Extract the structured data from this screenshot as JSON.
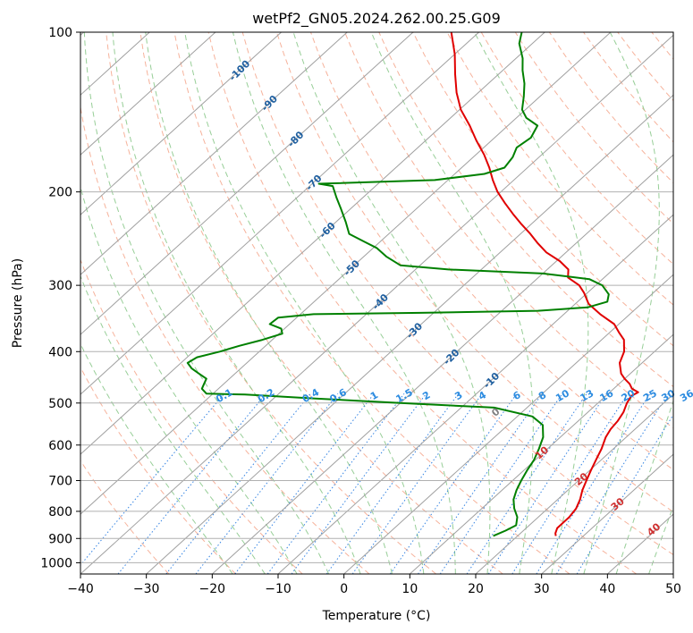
{
  "chart_data": {
    "type": "line",
    "title": "wetPf2_GN05.2024.262.00.25.G09",
    "xlabel": "Temperature (°C)",
    "ylabel": "Pressure (hPa)",
    "xlim": [
      -40,
      50
    ],
    "ylim": [
      1050,
      100
    ],
    "y_scale": "log",
    "x_ticks": [
      -40,
      -30,
      -20,
      -10,
      0,
      10,
      20,
      30,
      40,
      50
    ],
    "y_ticks": [
      100,
      200,
      300,
      400,
      500,
      600,
      700,
      800,
      900,
      1000
    ],
    "grid": true,
    "colors": {
      "temperature": "#e00000",
      "dewpoint": "#008000",
      "isotherm": "#9b9b9b",
      "dry_adiabat": "#f4a58a",
      "moist_adiabat": "#8cc98c",
      "mixing_ratio": "#1f77e0",
      "isotherm_label": "#2060a0",
      "mixing_label": "#2d8ce0",
      "height_label": "#d03030"
    },
    "series": [
      {
        "role": "temperature",
        "points": [
          [
            25.8,
            890
          ],
          [
            25.3,
            880
          ],
          [
            24.7,
            860
          ],
          [
            24.7,
            820
          ],
          [
            24.3,
            790
          ],
          [
            23.4,
            760
          ],
          [
            22.2,
            730
          ],
          [
            21.2,
            700
          ],
          [
            20.2,
            670
          ],
          [
            19.2,
            640
          ],
          [
            18.2,
            610
          ],
          [
            16.9,
            580
          ],
          [
            16.3,
            560
          ],
          [
            16.0,
            540
          ],
          [
            15.4,
            520
          ],
          [
            14.4,
            500
          ],
          [
            13.9,
            485
          ],
          [
            14.3,
            477
          ],
          [
            12.8,
            470
          ],
          [
            11.6,
            460
          ],
          [
            10.0,
            450
          ],
          [
            8.6,
            440
          ],
          [
            6.6,
            420
          ],
          [
            5.4,
            400
          ],
          [
            3.4,
            380
          ],
          [
            1.4,
            368
          ],
          [
            -0.7,
            355
          ],
          [
            -4.5,
            340
          ],
          [
            -8.0,
            325
          ],
          [
            -10.5,
            310
          ],
          [
            -12.5,
            300
          ],
          [
            -15.5,
            290
          ],
          [
            -16.8,
            280
          ],
          [
            -19.5,
            270
          ],
          [
            -23.0,
            260
          ],
          [
            -25.8,
            250
          ],
          [
            -28.5,
            240
          ],
          [
            -31.5,
            230
          ],
          [
            -34.5,
            220
          ],
          [
            -37.5,
            210
          ],
          [
            -40.5,
            200
          ],
          [
            -43.2,
            190
          ],
          [
            -45.8,
            180
          ],
          [
            -48.8,
            170
          ],
          [
            -52.3,
            160
          ],
          [
            -55.8,
            150
          ],
          [
            -59.8,
            140
          ],
          [
            -63.3,
            130
          ],
          [
            -66.6,
            120
          ],
          [
            -70.0,
            110
          ],
          [
            -74.2,
            100
          ]
        ]
      },
      {
        "role": "dewpoint",
        "points": [
          [
            16.3,
            890
          ],
          [
            17.3,
            870
          ],
          [
            18.0,
            850
          ],
          [
            16.8,
            820
          ],
          [
            14.9,
            790
          ],
          [
            13.3,
            760
          ],
          [
            12.2,
            730
          ],
          [
            11.3,
            700
          ],
          [
            10.5,
            670
          ],
          [
            9.8,
            640
          ],
          [
            8.7,
            610
          ],
          [
            7.4,
            580
          ],
          [
            5.3,
            550
          ],
          [
            2.3,
            530
          ],
          [
            -5.0,
            510
          ],
          [
            -20.0,
            500
          ],
          [
            -34.0,
            490
          ],
          [
            -45.0,
            482
          ],
          [
            -51.0,
            480
          ],
          [
            -52.5,
            470
          ],
          [
            -53.0,
            460
          ],
          [
            -53.5,
            450
          ],
          [
            -55.5,
            440
          ],
          [
            -57.5,
            430
          ],
          [
            -59.0,
            420
          ],
          [
            -58.5,
            410
          ],
          [
            -56.0,
            400
          ],
          [
            -54.0,
            390
          ],
          [
            -51.5,
            380
          ],
          [
            -49.5,
            370
          ],
          [
            -50.5,
            362
          ],
          [
            -53.0,
            355
          ],
          [
            -52.8,
            345
          ],
          [
            -48.0,
            340
          ],
          [
            -32.0,
            338
          ],
          [
            -14.5,
            335
          ],
          [
            -7.5,
            330
          ],
          [
            -5.5,
            322
          ],
          [
            -6.5,
            312
          ],
          [
            -9.0,
            300
          ],
          [
            -12.0,
            292
          ],
          [
            -20.0,
            285
          ],
          [
            -35.0,
            280
          ],
          [
            -43.0,
            275
          ],
          [
            -46.5,
            265
          ],
          [
            -49.5,
            255
          ],
          [
            -52.5,
            248
          ],
          [
            -56.0,
            240
          ],
          [
            -58.5,
            228
          ],
          [
            -61.5,
            215
          ],
          [
            -64.0,
            205
          ],
          [
            -66.5,
            195
          ],
          [
            -69.0,
            193
          ],
          [
            -52.0,
            190
          ],
          [
            -45.5,
            185
          ],
          [
            -43.5,
            180
          ],
          [
            -44.0,
            172
          ],
          [
            -45.0,
            165
          ],
          [
            -44.5,
            158
          ],
          [
            -45.5,
            150
          ],
          [
            -48.5,
            145
          ],
          [
            -50.5,
            140
          ],
          [
            -52.5,
            132
          ],
          [
            -54.5,
            125
          ],
          [
            -57.0,
            118
          ],
          [
            -59.0,
            112
          ],
          [
            -62.0,
            105
          ],
          [
            -63.5,
            100
          ]
        ]
      }
    ],
    "isotherm_labels": [
      "-100",
      "-90",
      "-80",
      "-70",
      "-60",
      "-50",
      "-40",
      "-30",
      "-20",
      "-10"
    ],
    "mixing_ratio_labels": [
      "0.1",
      "0.2",
      "0.4",
      "0.6",
      "1",
      "1.5",
      "2",
      "3",
      "4",
      "6",
      "8",
      "10",
      "13",
      "16",
      "20",
      "25",
      "30",
      "36"
    ],
    "height_labels": [
      "0",
      "10",
      "20",
      "30",
      "40"
    ]
  }
}
